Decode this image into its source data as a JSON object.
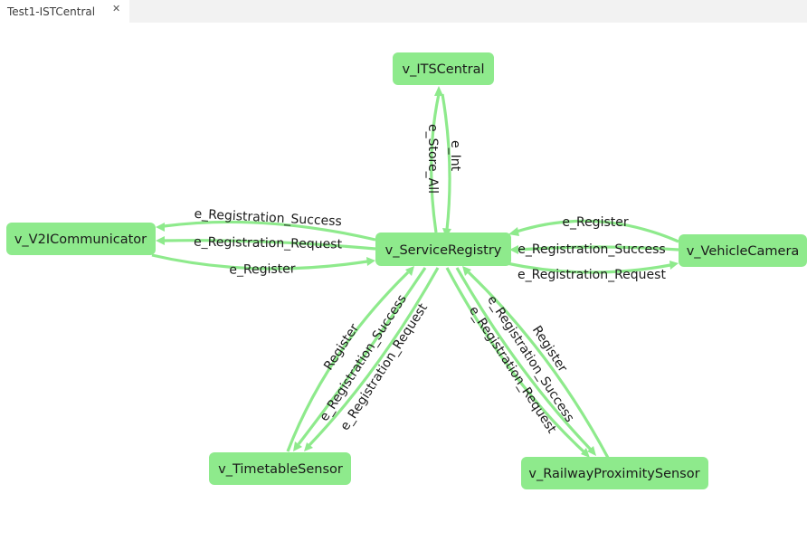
{
  "tab": {
    "title": "Test1-ISTCentral",
    "close_icon": "close-icon"
  },
  "nodes": {
    "its_central": "v_ITSCentral",
    "service_registry": "v_ServiceRegistry",
    "v2i_communicator": "v_V2ICommunicator",
    "vehicle_camera": "v_VehicleCamera",
    "timetable_sensor": "v_TimetableSensor",
    "railway_proximity_sensor": "v_RailwayProximitySensor"
  },
  "edges": {
    "store_all": "e_Store_All",
    "int": "e_Int",
    "v2i_success": "e_Registration_Success",
    "v2i_request": "e_Registration_Request",
    "v2i_register": "e_Register",
    "cam_register": "e_Register",
    "cam_success": "e_Registration_Success",
    "cam_request": "e_Registration_Request",
    "tt_register": "Register",
    "tt_success": "e_Registration_Success",
    "tt_request": "e_Registration_Request",
    "rail_register": "Register",
    "rail_success": "e_Registration_Success",
    "rail_request": "e_Registration_Request"
  },
  "colors": {
    "node_fill": "#8eea8c",
    "edge": "#8eea8c",
    "text": "#1a1a1a"
  }
}
